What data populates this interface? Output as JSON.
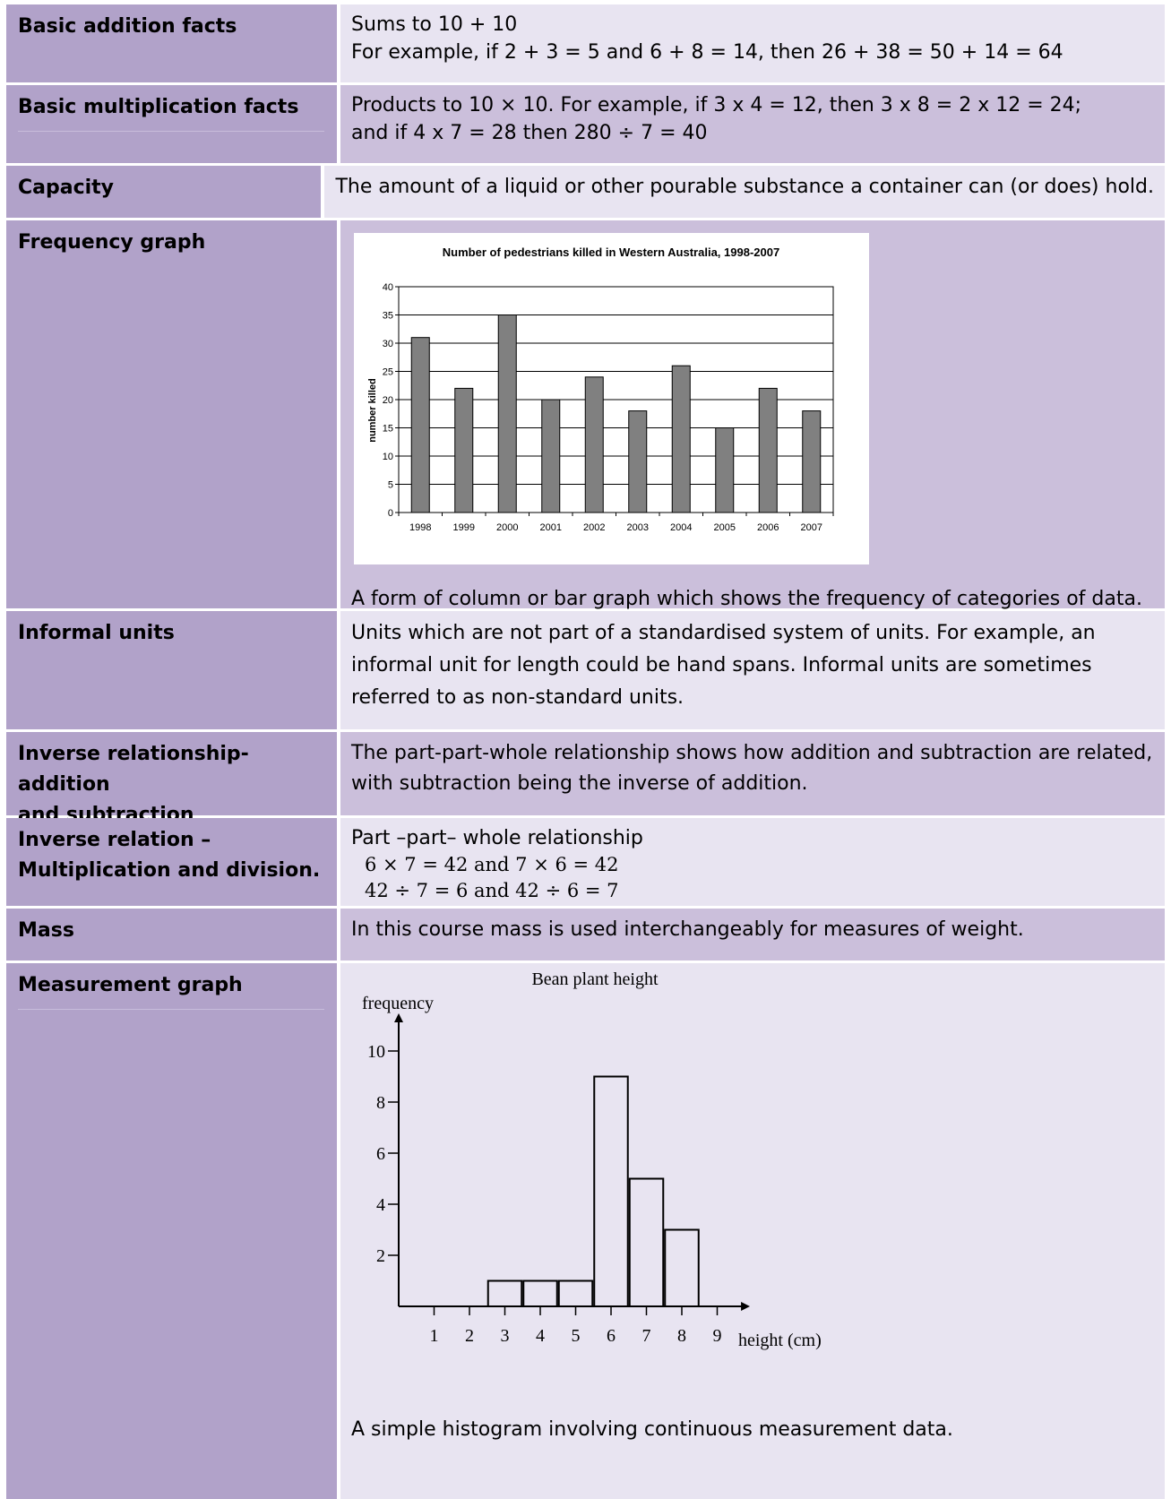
{
  "rows": {
    "basic_addition": {
      "term": "Basic addition facts",
      "def_line1": "Sums to 10 + 10",
      "def_line2": "For example, if 2 + 3 = 5 and 6 + 8 = 14, then 26 + 38 = 50 + 14 = 64"
    },
    "basic_multiplication": {
      "term": "Basic multiplication facts",
      "def_line1": "Products to 10 × 10. For example, if 3 x 4 = 12, then 3 x 8 = 2 x 12 = 24;",
      "def_line2": "and if 4 x 7 = 28 then 280 ÷ 7 = 40"
    },
    "capacity": {
      "term": "Capacity",
      "def": "The amount of a liquid or other pourable substance a container can (or does) hold."
    },
    "frequency_graph": {
      "term": "Frequency graph",
      "def": "A form of column or bar graph which shows the frequency of categories of data."
    },
    "informal_units": {
      "term": "Informal units",
      "def_line1": "Units which are not part of a standardised system of units. For example, an",
      "def_line2": "informal unit for length could be hand spans. Informal units are sometimes",
      "def_line3": "referred to as non-standard units."
    },
    "inverse_add_sub": {
      "term_line1": "Inverse relationship- addition",
      "term_line2": "and subtraction",
      "def_line1": "The part-part-whole relationship shows how addition and subtraction are related,",
      "def_line2": "with subtraction being the inverse of addition."
    },
    "inverse_mul_div": {
      "term_line1": "Inverse relation –",
      "term_line2": "Multiplication and division.",
      "def_line1": "Part –part– whole relationship",
      "math_line1": "6 × 7  =  42 and 7 × 6 = 42",
      "math_line2": "42 ÷ 7 = 6 and 42 ÷ 6 = 7"
    },
    "mass": {
      "term": "Mass",
      "def": "In this course mass is used interchangeably for measures of weight."
    },
    "measurement_graph": {
      "term": "Measurement graph",
      "def": "A simple histogram involving continuous measurement data."
    }
  },
  "chart_data": [
    {
      "type": "bar",
      "title": "Number of pedestrians killed in Western Australia, 1998-2007",
      "xlabel": "",
      "ylabel": "number killed",
      "categories": [
        "1998",
        "1999",
        "2000",
        "2001",
        "2002",
        "2003",
        "2004",
        "2005",
        "2006",
        "2007"
      ],
      "values": [
        31,
        22,
        35,
        20,
        24,
        18,
        26,
        15,
        22,
        18
      ],
      "ylim": [
        0,
        40
      ],
      "yticks": [
        0,
        5,
        10,
        15,
        20,
        25,
        30,
        35,
        40
      ],
      "grid": true,
      "bar_color": "#808080"
    },
    {
      "type": "bar",
      "title": "Bean plant height",
      "xlabel": "height (cm)",
      "ylabel": "frequency",
      "xticks": [
        1,
        2,
        3,
        4,
        5,
        6,
        7,
        8,
        9
      ],
      "yticks": [
        2,
        4,
        6,
        8,
        10
      ],
      "bins": [
        {
          "center": 3,
          "value": 1
        },
        {
          "center": 4,
          "value": 1
        },
        {
          "center": 5,
          "value": 1
        },
        {
          "center": 6,
          "value": 9
        },
        {
          "center": 7,
          "value": 5
        },
        {
          "center": 8,
          "value": 3
        }
      ],
      "grid": false
    }
  ]
}
